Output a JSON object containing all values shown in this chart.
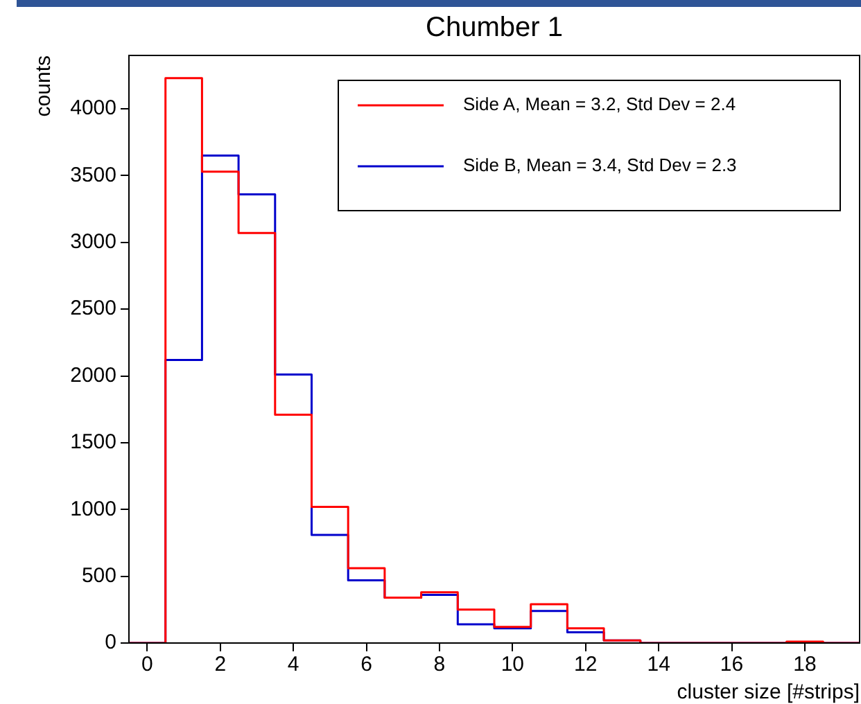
{
  "chart_data": {
    "type": "histogram",
    "title": "Chumber 1",
    "xlabel": "cluster size [#strips]",
    "ylabel": "counts",
    "bins": [
      -0.5,
      0.5,
      1.5,
      2.5,
      3.5,
      4.5,
      5.5,
      6.5,
      7.5,
      8.5,
      9.5,
      10.5,
      11.5,
      12.5,
      13.5,
      14.5,
      15.5,
      16.5,
      17.5,
      18.5,
      19.5
    ],
    "series": [
      {
        "name": "Side A, Mean = 3.2, Std Dev = 2.4",
        "color": "#ff0000",
        "values": [
          0,
          4230,
          3530,
          3070,
          1710,
          1020,
          560,
          340,
          380,
          250,
          120,
          290,
          110,
          20,
          0,
          0,
          0,
          0,
          10,
          0
        ]
      },
      {
        "name": "Side B, Mean = 3.4, Std Dev = 2.3",
        "color": "#0000cc",
        "values": [
          0,
          2120,
          3650,
          3360,
          2010,
          810,
          470,
          340,
          360,
          140,
          110,
          240,
          80,
          20,
          0,
          0,
          0,
          0,
          0,
          0
        ]
      }
    ],
    "xlim": [
      -0.5,
      19.5
    ],
    "xticks": [
      0,
      2,
      4,
      6,
      8,
      10,
      12,
      14,
      16,
      18
    ],
    "ylim": [
      0,
      4400
    ],
    "yticks": [
      0,
      500,
      1000,
      1500,
      2000,
      2500,
      3000,
      3500,
      4000
    ],
    "grid": false,
    "legend": "top right"
  }
}
